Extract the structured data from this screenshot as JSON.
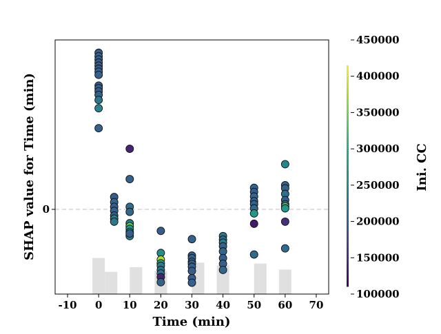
{
  "chart_data": {
    "type": "scatter",
    "xlabel": "Time (min)",
    "ylabel": "SHAP value for Time (min)",
    "xlim": [
      -14,
      74
    ],
    "ylim": [
      -1.65,
      3.3
    ],
    "x_ticks": [
      "-10",
      "0",
      "10",
      "20",
      "30",
      "40",
      "50",
      "60",
      "70"
    ],
    "x_tick_values": [
      -10,
      0,
      10,
      20,
      30,
      40,
      50,
      60,
      70
    ],
    "y_ticks": [
      "0"
    ],
    "y_tick_values": [
      0
    ],
    "zero_line": true,
    "grid": false,
    "colorbar": {
      "label": "Ini. CC",
      "range": [
        100000,
        450000
      ],
      "data_range": [
        110000,
        415000
      ],
      "ticks": [
        "100000",
        "150000",
        "200000",
        "250000",
        "300000",
        "350000",
        "400000",
        "450000"
      ],
      "tick_values": [
        100000,
        150000,
        200000,
        250000,
        300000,
        350000,
        400000,
        450000
      ],
      "colormap": "viridis"
    },
    "histogram": {
      "color": "#e0e0e0",
      "bars": [
        {
          "x0": -2,
          "x1": 2,
          "height": 0.78
        },
        {
          "x0": 2,
          "x1": 6,
          "height": 0.48
        },
        {
          "x0": 10,
          "x1": 14,
          "height": 0.58
        },
        {
          "x0": 18,
          "x1": 22,
          "height": 0.5
        },
        {
          "x0": 30,
          "x1": 34,
          "height": 0.68
        },
        {
          "x0": 38,
          "x1": 42,
          "height": 0.62
        },
        {
          "x0": 50,
          "x1": 54,
          "height": 0.66
        },
        {
          "x0": 58,
          "x1": 62,
          "height": 0.53
        }
      ]
    },
    "series": [
      {
        "x": 0,
        "points": [
          [
            3.05,
            200000
          ],
          [
            2.98,
            210000
          ],
          [
            2.92,
            205000
          ],
          [
            2.86,
            200000
          ],
          [
            2.8,
            200000
          ],
          [
            2.74,
            195000
          ],
          [
            2.68,
            210000
          ],
          [
            2.62,
            205000
          ],
          [
            2.41,
            200000
          ],
          [
            2.36,
            210000
          ],
          [
            2.3,
            200000
          ],
          [
            2.23,
            205000
          ],
          [
            2.13,
            230000
          ],
          [
            1.97,
            250000
          ],
          [
            1.58,
            205000
          ]
        ]
      },
      {
        "x": 5,
        "points": [
          [
            0.24,
            200000
          ],
          [
            0.14,
            210000
          ],
          [
            0.05,
            200000
          ],
          [
            -0.03,
            205000
          ],
          [
            -0.12,
            200000
          ],
          [
            -0.18,
            240000
          ],
          [
            -0.24,
            230000
          ]
        ]
      },
      {
        "x": 10,
        "points": [
          [
            1.18,
            140000
          ],
          [
            0.59,
            205000
          ],
          [
            0.05,
            220000
          ],
          [
            -0.05,
            210000
          ],
          [
            -0.27,
            240000
          ],
          [
            -0.33,
            340000
          ],
          [
            -0.38,
            270000
          ],
          [
            -0.44,
            260000
          ],
          [
            -0.52,
            240000
          ],
          [
            -0.47,
            200000
          ]
        ]
      },
      {
        "x": 20,
        "points": [
          [
            -0.42,
            200000
          ],
          [
            -0.85,
            260000
          ],
          [
            -0.98,
            380000
          ],
          [
            -1.05,
            290000
          ],
          [
            -1.1,
            240000
          ],
          [
            -1.18,
            220000
          ],
          [
            -1.25,
            230000
          ],
          [
            -1.32,
            140000
          ],
          [
            -1.42,
            205000
          ]
        ]
      },
      {
        "x": 30,
        "points": [
          [
            -0.58,
            205000
          ],
          [
            -0.9,
            200000
          ],
          [
            -0.95,
            205000
          ],
          [
            -1.02,
            210000
          ],
          [
            -1.06,
            200000
          ],
          [
            -1.12,
            205000
          ],
          [
            -1.2,
            200000
          ],
          [
            -1.34,
            200000
          ],
          [
            -1.43,
            205000
          ]
        ]
      },
      {
        "x": 40,
        "points": [
          [
            -0.52,
            230000
          ],
          [
            -0.59,
            215000
          ],
          [
            -0.65,
            240000
          ],
          [
            -0.72,
            205000
          ],
          [
            -0.82,
            210000
          ],
          [
            -0.95,
            200000
          ],
          [
            -1.06,
            205000
          ],
          [
            -1.18,
            210000
          ]
        ]
      },
      {
        "x": 50,
        "points": [
          [
            0.42,
            210000
          ],
          [
            0.34,
            200000
          ],
          [
            0.25,
            210000
          ],
          [
            0.16,
            200000
          ],
          [
            0.1,
            205000
          ],
          [
            0.02,
            210000
          ],
          [
            -0.08,
            270000
          ],
          [
            -0.28,
            130000
          ],
          [
            -0.88,
            215000
          ]
        ]
      },
      {
        "x": 60,
        "points": [
          [
            0.88,
            250000
          ],
          [
            0.47,
            210000
          ],
          [
            0.41,
            205000
          ],
          [
            0.3,
            220000
          ],
          [
            0.18,
            200000
          ],
          [
            0.1,
            205000
          ],
          [
            0.06,
            340000
          ],
          [
            0.02,
            270000
          ],
          [
            -0.24,
            150000
          ],
          [
            -0.76,
            215000
          ]
        ]
      }
    ]
  }
}
